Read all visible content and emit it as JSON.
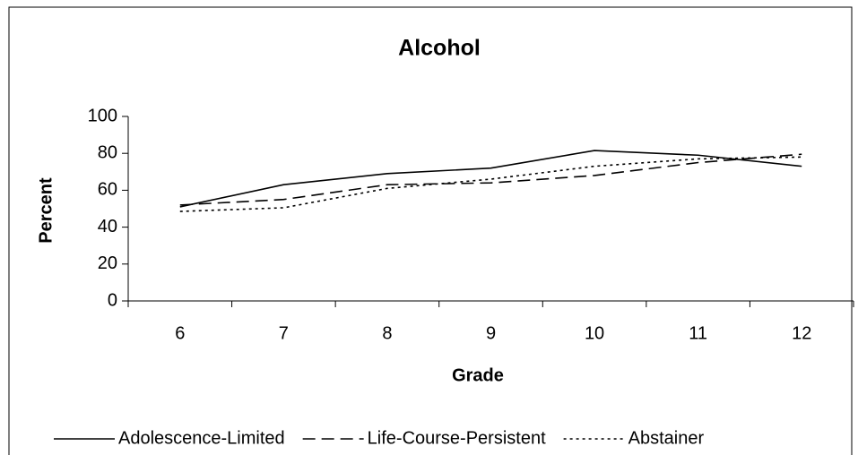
{
  "chart_data": {
    "type": "line",
    "title": "Alcohol",
    "x_label": "Grade",
    "y_label": "Percent",
    "categories": [
      "6",
      "7",
      "8",
      "9",
      "10",
      "11",
      "12"
    ],
    "series": [
      {
        "name": "Adolescence-Limited",
        "color": "#000000",
        "dash": "solid",
        "values": [
          51,
          63,
          69,
          72,
          81.5,
          79,
          73
        ]
      },
      {
        "name": "Life-Course-Persistent",
        "color": "#000000",
        "dash": "dashed",
        "values": [
          52,
          55,
          63,
          64,
          68,
          75,
          79.5
        ]
      },
      {
        "name": "Abstainer",
        "color": "#000000",
        "dash": "dotted",
        "values": [
          48.5,
          50.5,
          61,
          66,
          73,
          77,
          78
        ]
      }
    ],
    "ylim": [
      0,
      100
    ],
    "yticks": [
      0,
      20,
      40,
      60,
      80,
      100
    ],
    "grid": false,
    "legend": "bottom"
  }
}
